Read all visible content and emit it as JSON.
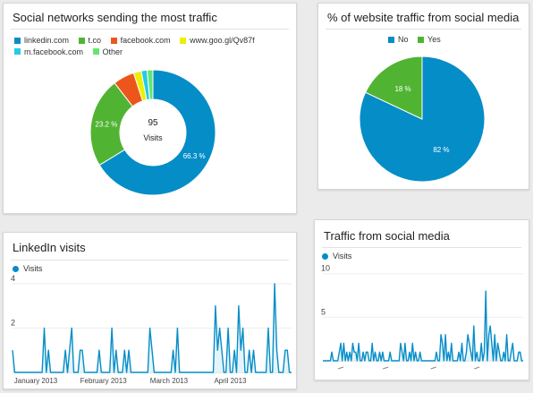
{
  "panels": {
    "social_networks": {
      "title": "Social networks sending the most traffic"
    },
    "pct_social": {
      "title": "% of website traffic from social media"
    },
    "linkedin": {
      "title": "LinkedIn visits"
    },
    "traffic_social": {
      "title": "Traffic from social media"
    }
  },
  "colors": {
    "blue": "#058dc7",
    "green": "#50b432",
    "orange": "#ed561b",
    "yellow": "#edef00",
    "cyan": "#24cbe5",
    "lightgreen": "#64e572"
  },
  "chart_data": [
    {
      "type": "pie",
      "title": "Social networks sending the most traffic",
      "center_value": "95",
      "center_label": "Visits",
      "slices": [
        {
          "name": "linkedin.com",
          "value": 66.3,
          "label": "66.3 %",
          "color": "#058dc7"
        },
        {
          "name": "t.co",
          "value": 23.2,
          "label": "23.2 %",
          "color": "#50b432"
        },
        {
          "name": "facebook.com",
          "value": 5.5,
          "label": "",
          "color": "#ed561b"
        },
        {
          "name": "www.goo.gl/Qv87f",
          "value": 2.0,
          "label": "",
          "color": "#edef00"
        },
        {
          "name": "m.facebook.com",
          "value": 1.5,
          "label": "",
          "color": "#24cbe5"
        },
        {
          "name": "Other",
          "value": 1.5,
          "label": "",
          "color": "#64e572"
        }
      ]
    },
    {
      "type": "pie",
      "title": "% of website traffic from social media",
      "slices": [
        {
          "name": "No",
          "value": 82,
          "label": "82 %",
          "color": "#058dc7"
        },
        {
          "name": "Yes",
          "value": 18,
          "label": "18 %",
          "color": "#50b432"
        }
      ]
    },
    {
      "type": "line",
      "title": "LinkedIn visits",
      "series_name": "Visits",
      "ylim": [
        0,
        4.4
      ],
      "yticks": [
        "4",
        "2"
      ],
      "ytick_values": [
        4,
        2
      ],
      "xticks": [
        "January 2013",
        "February 2013",
        "March 2013",
        "April 2013"
      ],
      "xtick_index": [
        11,
        43,
        74,
        103
      ],
      "values": [
        1,
        0,
        0,
        0,
        0,
        0,
        0,
        0,
        0,
        0,
        0,
        0,
        0,
        0,
        0,
        2,
        0,
        1,
        0,
        0,
        0,
        0,
        0,
        0,
        0,
        1,
        0,
        1,
        2,
        0,
        0,
        0,
        1,
        1,
        0,
        0,
        0,
        0,
        0,
        0,
        0,
        1,
        0,
        0,
        0,
        0,
        0,
        2,
        0,
        1,
        0,
        0,
        0,
        1,
        0,
        1,
        0,
        0,
        0,
        0,
        0,
        0,
        0,
        0,
        0,
        2,
        1,
        0,
        0,
        0,
        0,
        0,
        0,
        0,
        0,
        0,
        1,
        0,
        2,
        0,
        0,
        0,
        0,
        0,
        0,
        0,
        0,
        0,
        0,
        0,
        0,
        0,
        0,
        0,
        0,
        0,
        3,
        1,
        2,
        1,
        0,
        0,
        2,
        0,
        0,
        1,
        0,
        3,
        1,
        2,
        0,
        0,
        1,
        0,
        1,
        0,
        0,
        0,
        0,
        0,
        0,
        2,
        0,
        0,
        4,
        1,
        0,
        0,
        0,
        1,
        1,
        0,
        0
      ]
    },
    {
      "type": "line",
      "title": "Traffic from social media",
      "series_name": "Visits",
      "ylim": [
        0,
        11
      ],
      "yticks": [
        "10",
        "5"
      ],
      "ytick_values": [
        10,
        5
      ],
      "xticks": [
        "",
        "",
        "",
        ""
      ],
      "xtick_index": [
        12,
        42,
        74,
        103
      ],
      "values": [
        0,
        0,
        0,
        0,
        0,
        0,
        1,
        0,
        0,
        0,
        0,
        1,
        2,
        0,
        2,
        0,
        1,
        0,
        1,
        0,
        2,
        1,
        1,
        0,
        2,
        0,
        0,
        1,
        0,
        1,
        1,
        0,
        0,
        2,
        0,
        1,
        0,
        0,
        1,
        0,
        1,
        0,
        0,
        0,
        0,
        1,
        0,
        0,
        0,
        0,
        0,
        0,
        2,
        1,
        0,
        2,
        0,
        0,
        1,
        0,
        2,
        0,
        1,
        0,
        0,
        1,
        0,
        0,
        0,
        0,
        0,
        0,
        0,
        0,
        0,
        0,
        1,
        0,
        0,
        3,
        2,
        0,
        3,
        0,
        1,
        0,
        2,
        0,
        0,
        0,
        0,
        1,
        0,
        2,
        0,
        0,
        1,
        3,
        2,
        1,
        0,
        4,
        0,
        1,
        0,
        0,
        2,
        0,
        1,
        8,
        0,
        3,
        4,
        2,
        0,
        3,
        0,
        2,
        1,
        0,
        0,
        1,
        0,
        3,
        0,
        0,
        1,
        2,
        0,
        0,
        0,
        1,
        1,
        0,
        0
      ]
    }
  ]
}
